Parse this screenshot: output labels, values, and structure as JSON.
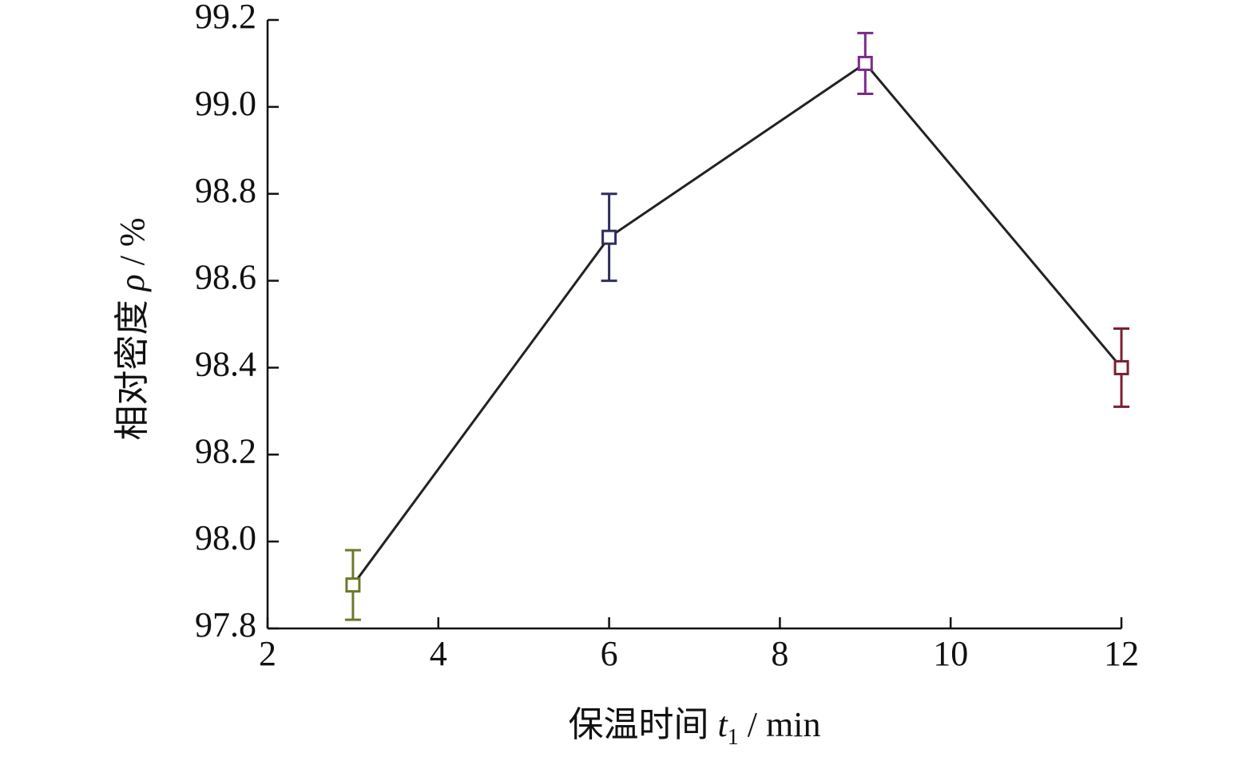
{
  "chart_data": {
    "type": "line",
    "xlabel": [
      "保温时间 ",
      "t",
      "1",
      " / min"
    ],
    "ylabel": [
      "相对密度 ",
      "ρ",
      " / %"
    ],
    "x": [
      3,
      6,
      9,
      12
    ],
    "values": [
      97.9,
      98.7,
      99.1,
      98.4
    ],
    "errors": [
      0.08,
      0.1,
      0.07,
      0.09
    ],
    "colors": [
      "#6b7a2a",
      "#2e2e5e",
      "#7b2a8a",
      "#7a2030"
    ],
    "line_color": "#222222",
    "xlim": [
      2,
      12
    ],
    "xticks": [
      2,
      4,
      6,
      8,
      10,
      12
    ],
    "ylim": [
      97.8,
      99.2
    ],
    "yticks": [
      97.8,
      {
        "value": 98,
        "label": "98.0"
      },
      98.2,
      98.4,
      98.6,
      98.8,
      {
        "value": 99,
        "label": "99.0"
      },
      99.2
    ],
    "grid": false
  }
}
